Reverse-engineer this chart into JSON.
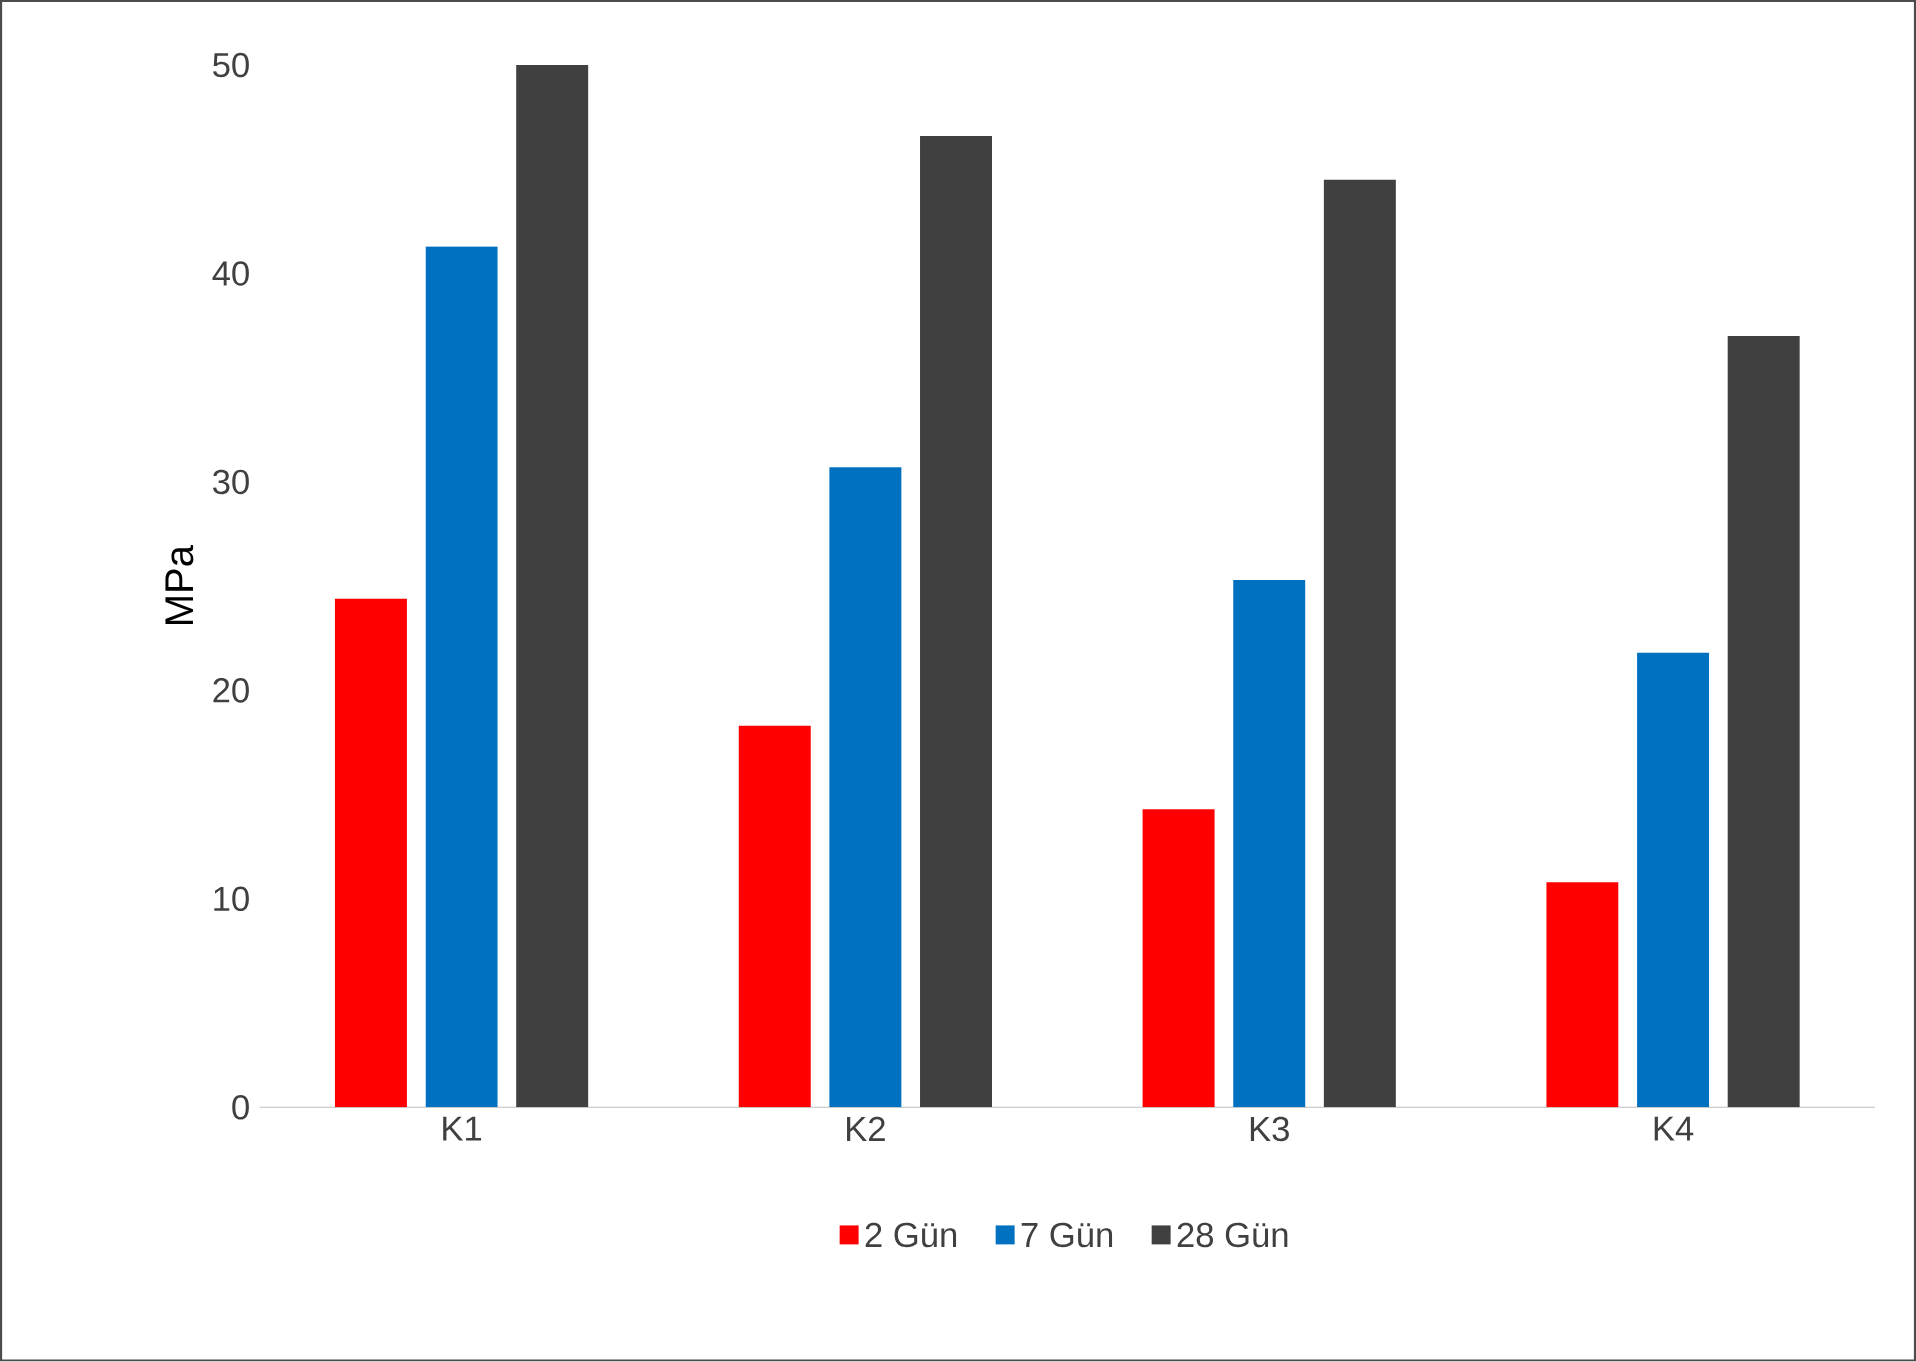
{
  "chart_data": {
    "type": "bar",
    "ylabel": "MPa",
    "categories": [
      "K1",
      "K2",
      "K3",
      "K4"
    ],
    "series": [
      {
        "name": "2 Gün",
        "color": "#ff0000",
        "values": [
          24.4,
          18.3,
          14.3,
          10.8
        ]
      },
      {
        "name": "7 Gün",
        "color": "#0070c0",
        "values": [
          41.3,
          30.7,
          25.3,
          21.8
        ]
      },
      {
        "name": "28 Gün",
        "color": "#404040",
        "values": [
          50.0,
          46.6,
          44.5,
          37.0
        ]
      }
    ],
    "ylim": [
      0,
      50
    ],
    "yticks": [
      0,
      10,
      20,
      30,
      40,
      50
    ],
    "grid": false,
    "legend": "bottom"
  }
}
